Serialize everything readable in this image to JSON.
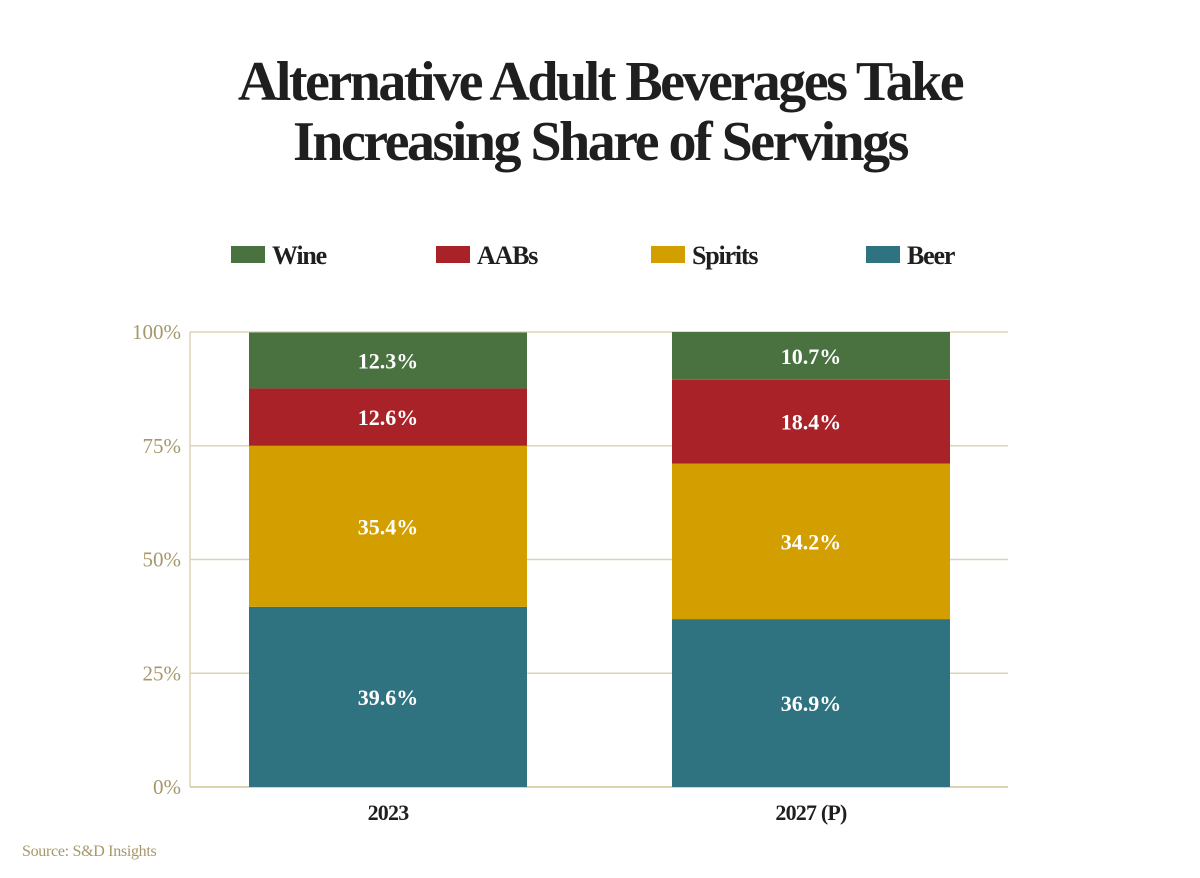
{
  "title_lines": [
    "Alternative Adult Beverages Take",
    "Increasing Share of Servings"
  ],
  "source": "Source: S&D Insights",
  "colors": {
    "Wine": "#4a7240",
    "AABs": "#a92228",
    "Spirits": "#d39e00",
    "Beer": "#2f7380",
    "axis_text": "#a6976b",
    "grid": "#ddd3b3",
    "label_text": "#ffffff",
    "category_text": "#1f1f1f"
  },
  "chart_data": {
    "type": "bar",
    "stacked": true,
    "categories": [
      "2023",
      "2027 (P)"
    ],
    "series": [
      {
        "name": "Beer",
        "values": [
          39.6,
          36.9
        ],
        "labels": [
          "39.6%",
          "36.9%"
        ]
      },
      {
        "name": "Spirits",
        "values": [
          35.4,
          34.2
        ],
        "labels": [
          "35.4%",
          "34.2%"
        ]
      },
      {
        "name": "AABs",
        "values": [
          12.6,
          18.4
        ],
        "labels": [
          "12.6%",
          "18.4%"
        ]
      },
      {
        "name": "Wine",
        "values": [
          12.3,
          10.7
        ],
        "labels": [
          "12.3%",
          "10.7%"
        ]
      }
    ],
    "legend_order": [
      "Wine",
      "AABs",
      "Spirits",
      "Beer"
    ],
    "legend_position": "top",
    "yticks": [
      0,
      25,
      50,
      75,
      100
    ],
    "ytick_labels": [
      "0%",
      "25%",
      "50%",
      "75%",
      "100%"
    ],
    "ylim": [
      0,
      100
    ],
    "grid": true
  }
}
